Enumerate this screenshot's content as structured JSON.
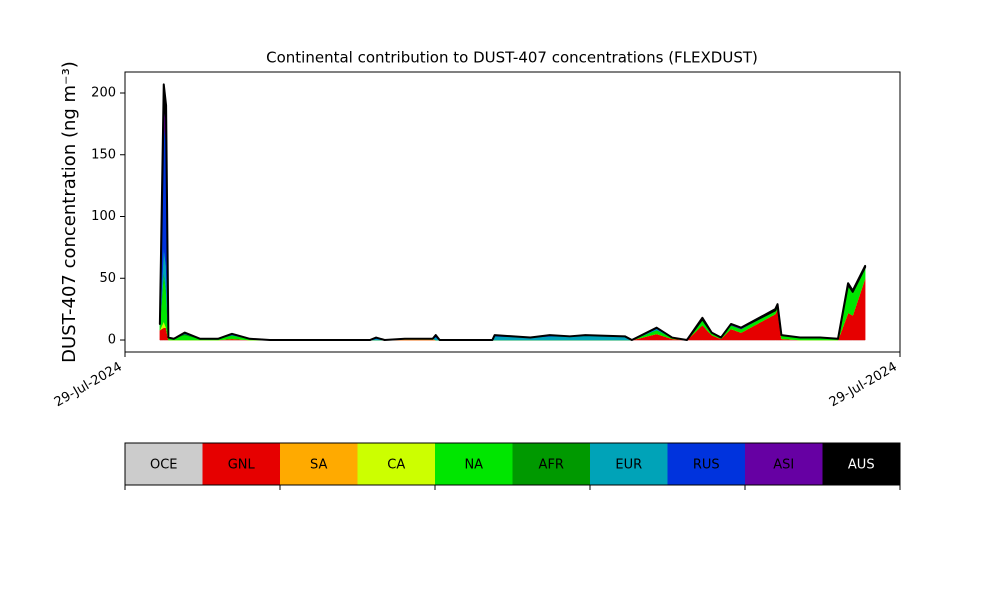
{
  "chart_data": {
    "type": "stackedarea",
    "title": "Continental contribution to DUST-407 concentrations (FLEXDUST)",
    "ylabel": "DUST-407 concentration (ng m⁻³)",
    "x": [
      4.5,
      5.0,
      5.3,
      5.6,
      6.3,
      6.6,
      7.7,
      9.7,
      12.0,
      13.8,
      16.1,
      18.7,
      31.6,
      32.4,
      33.5,
      36.1,
      39.7,
      40.1,
      40.6,
      47.4,
      47.7,
      52.3,
      54.8,
      57.4,
      59.4,
      64.5,
      65.4,
      68.6,
      70.6,
      72.5,
      74.5,
      75.7,
      76.9,
      78.2,
      79.5,
      83.9,
      84.2,
      84.7,
      87.1,
      89.7,
      92.0,
      93.3,
      93.9,
      95.5
    ],
    "xlim": [
      0,
      100
    ],
    "xticks": [
      {
        "value": 0,
        "label": "29-Jul-2024"
      },
      {
        "value": 100,
        "label": "29-Jul-2024"
      }
    ],
    "ylim": [
      -9.7,
      217
    ],
    "yticks": [
      0,
      50,
      100,
      150,
      200
    ],
    "series": [
      {
        "name": "OCE",
        "color": "#cccccc",
        "values": [
          0,
          0,
          0,
          0,
          0,
          0,
          0,
          0,
          0,
          0,
          0,
          0,
          0,
          0,
          0,
          0,
          0,
          0,
          0,
          0,
          0,
          0,
          0,
          0,
          0,
          0,
          0,
          0,
          0,
          0,
          0,
          0,
          0,
          0,
          0,
          0,
          0,
          0,
          0,
          0,
          0,
          0,
          0,
          0
        ]
      },
      {
        "name": "GNL",
        "color": "#e60000",
        "values": [
          8,
          10,
          10,
          0,
          0,
          0,
          0,
          0,
          0,
          1,
          0,
          0,
          0,
          0,
          0,
          0,
          0,
          0,
          0,
          0,
          0,
          0,
          0,
          0,
          0,
          0,
          0,
          5,
          1,
          0,
          12,
          4,
          1,
          9,
          6,
          21,
          25,
          1,
          0,
          0,
          0,
          22,
          20,
          50
        ]
      },
      {
        "name": "SA",
        "color": "#ffaa00",
        "values": [
          0,
          0,
          0,
          0,
          0,
          0,
          0,
          0,
          0,
          0,
          0,
          0,
          0,
          0,
          0,
          1,
          1,
          0,
          0,
          0,
          0,
          0,
          0,
          0,
          0,
          0,
          0,
          0,
          0,
          0,
          0,
          0,
          0,
          0,
          0,
          0,
          0,
          0,
          0,
          0,
          0,
          0,
          0,
          0
        ]
      },
      {
        "name": "CA",
        "color": "#ccff00",
        "values": [
          0,
          5,
          0,
          0,
          0,
          0,
          0,
          0,
          0,
          0,
          0,
          0,
          0,
          0,
          0,
          0,
          0,
          0,
          0,
          0,
          0,
          0,
          0,
          0,
          0,
          0,
          0,
          0,
          0,
          0,
          0,
          0,
          0,
          0,
          0,
          0,
          0,
          0,
          0,
          0,
          0,
          0,
          0,
          0
        ]
      },
      {
        "name": "NA",
        "color": "#00e600",
        "values": [
          5,
          40,
          30,
          2,
          1,
          2,
          4,
          1,
          1,
          3,
          1,
          0,
          0,
          0,
          0,
          0,
          0,
          0,
          0,
          0,
          0,
          0,
          0,
          0,
          0,
          0,
          0,
          3,
          1,
          0,
          4,
          2,
          1,
          3,
          3,
          3,
          3,
          3,
          2,
          2,
          1,
          23,
          19,
          9
        ]
      },
      {
        "name": "AFR",
        "color": "#009900",
        "values": [
          0,
          0,
          0,
          0,
          0,
          0,
          1,
          0,
          0,
          0,
          0,
          0,
          0,
          0,
          0,
          0,
          0,
          0,
          0,
          0,
          0,
          0,
          0,
          0,
          0,
          0,
          0,
          0,
          0,
          0,
          0,
          0,
          0,
          0,
          0,
          0,
          0,
          0,
          0,
          0,
          0,
          0,
          0,
          0
        ]
      },
      {
        "name": "EUR",
        "color": "#00a3b8",
        "values": [
          0,
          20,
          20,
          0,
          0,
          0,
          0,
          0,
          0,
          0,
          0,
          0,
          0,
          1,
          0,
          0,
          0,
          2,
          0,
          0,
          3,
          2,
          3,
          3,
          4,
          3,
          0,
          1,
          0,
          0,
          0,
          0,
          0,
          0,
          0,
          0,
          0,
          0,
          0,
          0,
          0,
          0,
          0,
          0
        ]
      },
      {
        "name": "RUS",
        "color": "#0033dd",
        "values": [
          0,
          100,
          100,
          0,
          0,
          0,
          1,
          0,
          0,
          1,
          0,
          0,
          0,
          1,
          0,
          0,
          0,
          2,
          0,
          0,
          1,
          0,
          1,
          0,
          0,
          0,
          0,
          1,
          0,
          0,
          0,
          0,
          0,
          0,
          0,
          0,
          0,
          0,
          0,
          0,
          0,
          0,
          0,
          0
        ]
      },
      {
        "name": "ASI",
        "color": "#6600a3",
        "values": [
          0,
          20,
          20,
          0,
          0,
          0,
          0,
          0,
          0,
          0,
          0,
          0,
          0,
          0,
          0,
          0,
          0,
          0,
          0,
          0,
          0,
          0,
          0,
          0,
          0,
          0,
          0,
          0,
          0,
          0,
          1,
          0,
          0,
          1,
          1,
          0,
          0,
          0,
          0,
          0,
          0,
          0,
          0,
          0
        ]
      },
      {
        "name": "AUS",
        "color": "#000000",
        "values": [
          0,
          12,
          10,
          0,
          0,
          0,
          0,
          0,
          0,
          0,
          0,
          0,
          0,
          0,
          0,
          0,
          0,
          0,
          0,
          0,
          0,
          0,
          0,
          0,
          0,
          0,
          0,
          0,
          0,
          0,
          1,
          0,
          0,
          0,
          0,
          1,
          1,
          0,
          0,
          0,
          0,
          1,
          1,
          1
        ]
      }
    ]
  }
}
